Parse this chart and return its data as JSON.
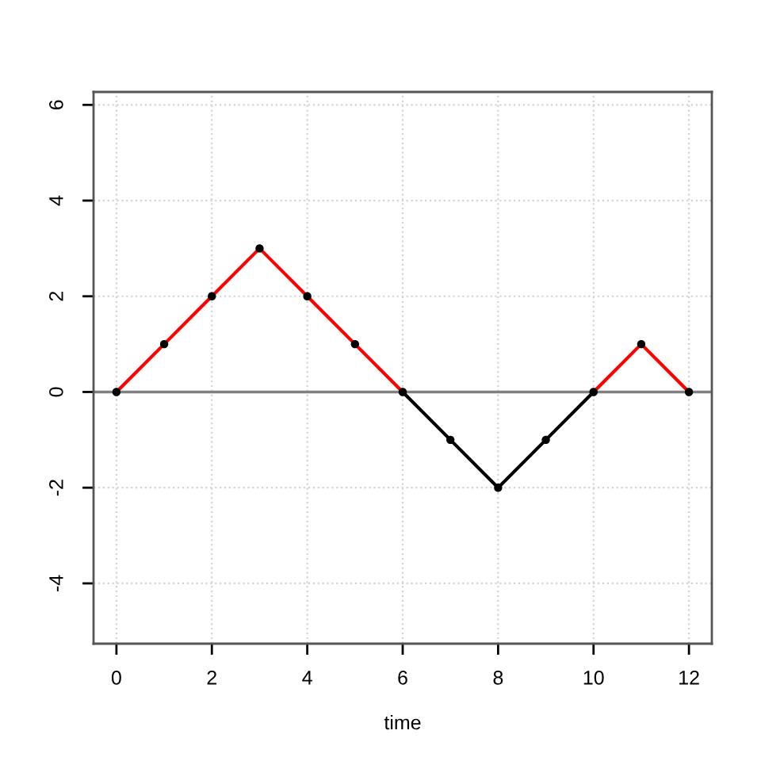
{
  "chart_data": {
    "type": "line",
    "x": [
      0,
      1,
      2,
      3,
      4,
      5,
      6,
      7,
      8,
      9,
      10,
      11,
      12
    ],
    "xlabel": "time",
    "xlim": [
      -0.48,
      12.48
    ],
    "xticks": [
      0,
      2,
      4,
      6,
      8,
      10,
      12
    ],
    "ylim": [
      -5.26,
      6.27
    ],
    "yticks": [
      -4,
      -2,
      0,
      2,
      4,
      6
    ],
    "grid": true,
    "ref_lines": [
      {
        "axis": "y",
        "value": 0,
        "color": "#808080"
      }
    ],
    "series": [
      {
        "color": "#ff0000",
        "values": [
          0,
          1,
          2,
          3,
          2,
          1,
          0,
          null,
          null,
          null,
          0,
          1,
          0
        ]
      },
      {
        "color": "#000000",
        "values": [
          null,
          null,
          null,
          null,
          null,
          null,
          0,
          -1,
          -2,
          -1,
          0,
          null,
          null
        ]
      },
      {
        "type": "scatter",
        "color": "#000000",
        "marker": "circle",
        "values": [
          0,
          1,
          2,
          3,
          2,
          1,
          0,
          -1,
          -2,
          -1,
          0,
          1,
          0
        ]
      }
    ]
  }
}
